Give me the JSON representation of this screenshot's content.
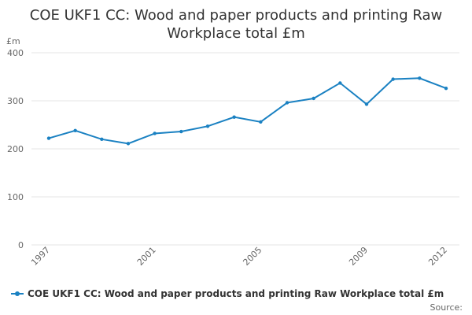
{
  "chart_data": {
    "type": "line",
    "title": "COE UKF1 CC: Wood and paper products and printing Raw Workplace total £m",
    "ylabel": "£m",
    "xlabel": "",
    "ylim": [
      0,
      400
    ],
    "yticks": [
      0,
      100,
      200,
      300,
      400
    ],
    "xtick_labels": [
      "1997",
      "2001",
      "2005",
      "2009",
      "2012"
    ],
    "x": [
      1997,
      1998,
      1999,
      2000,
      2001,
      2002,
      2003,
      2004,
      2005,
      2006,
      2007,
      2008,
      2009,
      2010,
      2011,
      2012
    ],
    "series": [
      {
        "name": "COE UKF1 CC: Wood and paper products and printing Raw Workplace total £m",
        "color": "#1a81c2",
        "values": [
          222,
          238,
          220,
          211,
          232,
          236,
          247,
          266,
          256,
          296,
          305,
          337,
          293,
          345,
          347,
          326
        ]
      }
    ],
    "grid": true,
    "legend_position": "bottom-left"
  },
  "source_label": "Source:"
}
